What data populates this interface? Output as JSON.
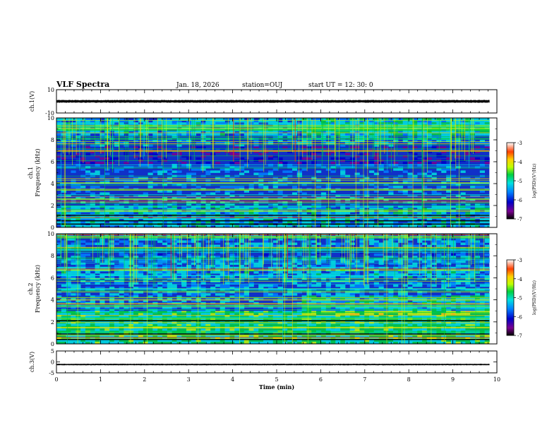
{
  "header": {
    "title": "VLF Spectra",
    "date": "Jan. 18, 2026",
    "station": "station=OUJ",
    "start": "start UT =  12: 30: 0"
  },
  "colors": {
    "spectrogram_base": "#1030c8",
    "colormap": [
      "#000000",
      "#7a0090",
      "#0000c8",
      "#0080ff",
      "#00e0e0",
      "#00d040",
      "#c0ff00",
      "#ffd000",
      "#ff4000",
      "#ffffff"
    ]
  },
  "chart_data": [
    {
      "type": "line",
      "name": "ch1-waveform",
      "ylabel": "ch.1(V)",
      "ylim": [
        -10,
        10
      ],
      "yticks": [
        "10",
        "-10"
      ],
      "xlim": [
        0,
        10
      ],
      "description_values": {
        "mean": 0,
        "amplitude": 1
      }
    },
    {
      "type": "heatmap",
      "name": "ch1-spectrogram",
      "ylabel_line1": "ch.1",
      "ylabel_line2": "Frequency (kHz)",
      "ylim": [
        0,
        10
      ],
      "yticks": [
        "0",
        "2",
        "4",
        "6",
        "8",
        "10"
      ],
      "xlim": [
        0,
        10
      ],
      "colorbar": {
        "label": "log(PSD)(V²/Hz)",
        "range": [
          -7,
          -3
        ],
        "ticks": [
          "-3",
          "-4",
          "-5",
          "-6",
          "-7"
        ]
      }
    },
    {
      "type": "heatmap",
      "name": "ch2-spectrogram",
      "ylabel_line1": "ch.2",
      "ylabel_line2": "Frequency (kHz)",
      "ylim": [
        0,
        10
      ],
      "yticks": [
        "0",
        "2",
        "4",
        "6",
        "8",
        "10"
      ],
      "xlim": [
        0,
        10
      ],
      "colorbar": {
        "label": "log(PSD)(V²/Hz)",
        "range": [
          -7,
          -3
        ],
        "ticks": [
          "-3",
          "-4",
          "-5",
          "-6",
          "-7"
        ]
      }
    },
    {
      "type": "line",
      "name": "ch3-waveform",
      "ylabel": "ch.3(V)",
      "ylim": [
        -5,
        5
      ],
      "yticks": [
        "5",
        "0",
        "-5"
      ],
      "xlim": [
        0,
        10
      ],
      "description_values": {
        "mean": -1.2,
        "amplitude": 0.25
      }
    }
  ],
  "xaxis": {
    "label": "Time (min)",
    "ticks": [
      "0",
      "1",
      "2",
      "3",
      "4",
      "5",
      "6",
      "7",
      "8",
      "9",
      "10"
    ],
    "data_end": 9.83
  }
}
